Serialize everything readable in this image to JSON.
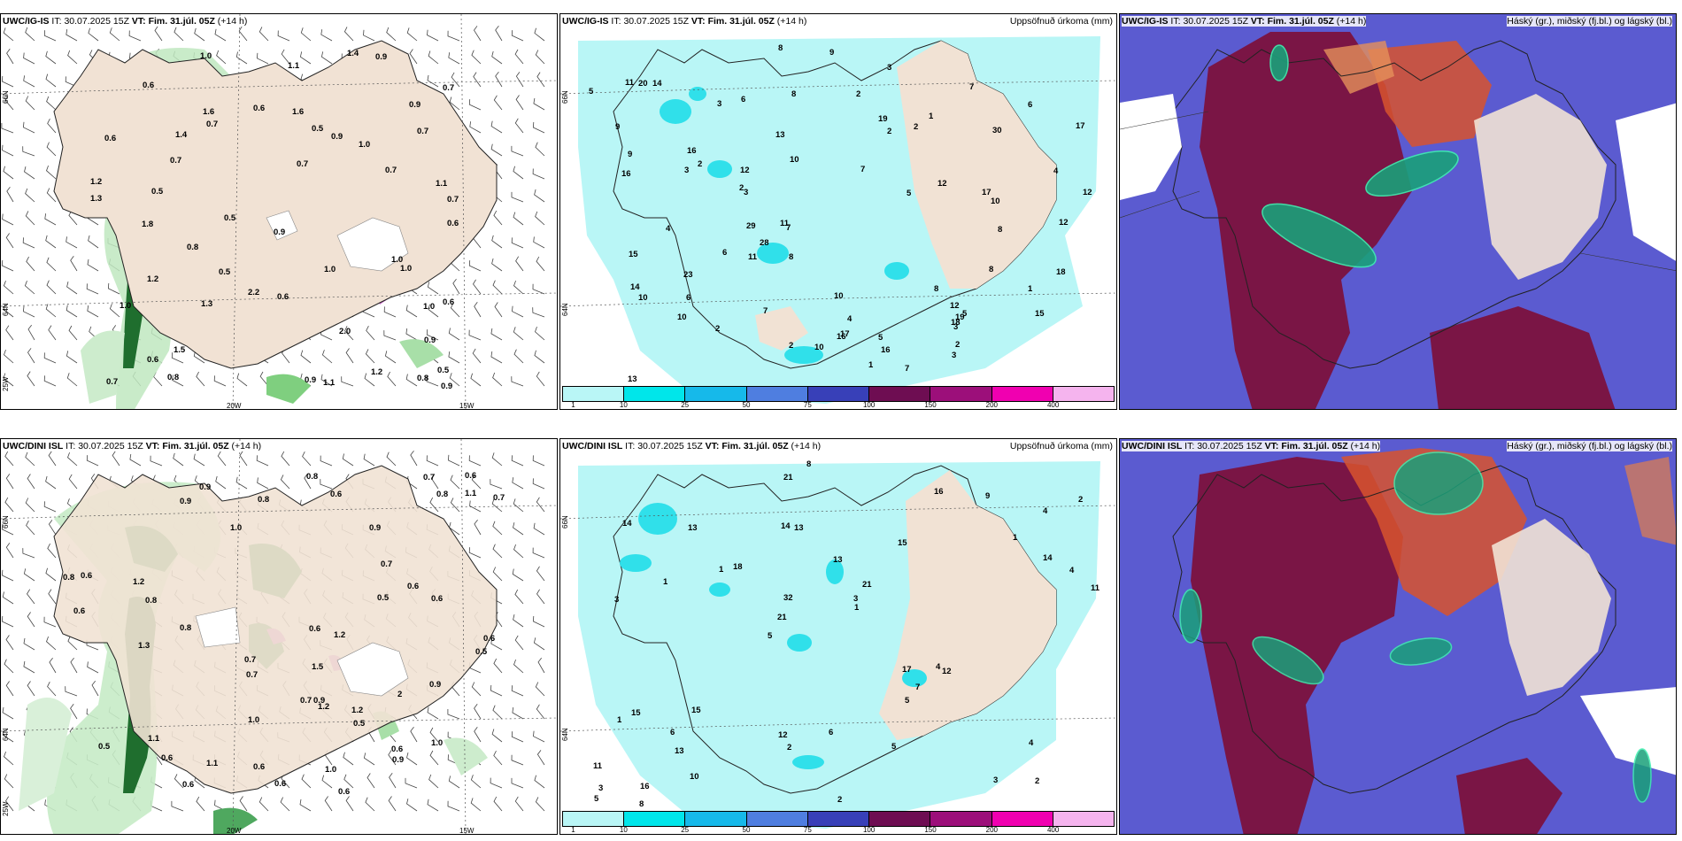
{
  "panels": {
    "ig_wind": {
      "model": "UWC/IG-IS",
      "it_label": "IT:",
      "it_value": "30.07.2025 15Z",
      "vt_label": "VT:",
      "vt_value": "Fim. 31.júl. 05Z",
      "lead": "(+14 h)",
      "lat_labels": [
        "66N",
        "64N",
        "25W"
      ],
      "lon_labels": [
        "20W",
        "15W"
      ],
      "values": [
        "0.7",
        "1.1",
        "0.9",
        "0.7",
        "0.5",
        "0.6",
        "0.5",
        "1.4",
        "1.0",
        "0.9",
        "0.7",
        "1.0",
        "0.7",
        "1.3",
        "1.0",
        "0.9",
        "0.8",
        "1.2",
        "1.0",
        "0.6",
        "0.5",
        "1.6",
        "0.6",
        "1.2",
        "0.7",
        "0.9",
        "0.7",
        "2.0",
        "0.9",
        "0.7",
        "0.8",
        "0.9",
        "1.8",
        "1.1",
        "0.5",
        "1.3",
        "0.6",
        "1.0",
        "0.7",
        "1.0",
        "1.1",
        "0.6",
        "2.2",
        "0.6",
        "0.9",
        "0.6",
        "0.5",
        "1.0",
        "1.6",
        "1.5",
        "0.8",
        "1.4",
        "1.2"
      ]
    },
    "ig_precip": {
      "model": "UWC/IG-IS",
      "it_label": "IT:",
      "it_value": "30.07.2025 15Z",
      "vt_label": "VT:",
      "vt_value": "Fim. 31.júl. 05Z",
      "lead": "(+14 h)",
      "title_right": "Uppsöfnuð úrkoma (mm)",
      "lat_labels": [
        "66N",
        "64N"
      ],
      "values": [
        "2",
        "4",
        "7",
        "5",
        "12",
        "10",
        "17",
        "15",
        "17",
        "16",
        "23",
        "15",
        "10",
        "7",
        "7",
        "16",
        "12",
        "19",
        "18",
        "10",
        "14",
        "8",
        "3",
        "3",
        "5",
        "2",
        "3",
        "1",
        "6",
        "12",
        "11",
        "8",
        "8",
        "10",
        "18",
        "13",
        "20",
        "5",
        "7",
        "6",
        "13",
        "10",
        "29",
        "14",
        "16",
        "19",
        "9",
        "8",
        "8",
        "8",
        "16",
        "9",
        "11",
        "12",
        "17",
        "7",
        "11",
        "10",
        "2",
        "3",
        "2",
        "2",
        "2",
        "3",
        "2",
        "4",
        "28",
        "30",
        "1",
        "2",
        "3",
        "1",
        "9",
        "5",
        "4",
        "6",
        "6",
        "12"
      ]
    },
    "ig_cloud": {
      "model": "UWC/IG-IS",
      "it_label": "IT:",
      "it_value": "30.07.2025 15Z",
      "vt_label": "VT:",
      "vt_value": "Fim. 31.júl. 05Z",
      "lead": "(+14 h)",
      "title_right": "Háský (gr.), miðský (fj.bl.) og lágský (bl.)"
    },
    "dini_wind": {
      "model": "UWC/DINI ISL",
      "it_label": "IT:",
      "it_value": "30.07.2025 15Z",
      "vt_label": "VT:",
      "vt_value": "Fim. 31.júl. 05Z",
      "lead": "(+14 h)",
      "lat_labels": [
        "66N",
        "64N",
        "25W"
      ],
      "lon_labels": [
        "20W",
        "15W"
      ],
      "values": [
        "0.6",
        "0.9",
        "1.1",
        "1.2",
        "0.6",
        "1.0",
        "0.5",
        "0.8",
        "0.7",
        "0.6",
        "0.5",
        "0.8",
        "0.7",
        "0.9",
        "0.5",
        "0.7",
        "0.6",
        "0.8",
        "2",
        "0.6",
        "0.6",
        "1.2",
        "0.6",
        "0.9",
        "1.2",
        "0.7",
        "1.3",
        "0.8",
        "0.6",
        "1.0",
        "0.5",
        "0.6",
        "0.9",
        "1.1",
        "0.9",
        "0.6",
        "0.8",
        "0.6",
        "0.6",
        "1.2",
        "0.8",
        "0.6",
        "0.7",
        "1.0",
        "0.6",
        "0.9",
        "0.7",
        "1.0",
        "1.5",
        "1.1"
      ]
    },
    "dini_precip": {
      "model": "UWC/DINI ISL",
      "it_label": "IT:",
      "it_value": "30.07.2025 15Z",
      "vt_label": "VT:",
      "vt_value": "Fim. 31.júl. 05Z",
      "lead": "(+14 h)",
      "title_right": "Uppsöfnuð úrkoma (mm)",
      "lat_labels": [
        "66N",
        "64N"
      ],
      "values": [
        "2",
        "3",
        "4",
        "5",
        "15",
        "16",
        "14",
        "13",
        "15",
        "18",
        "11",
        "13",
        "13",
        "21",
        "12",
        "14",
        "21",
        "11",
        "17",
        "14",
        "21",
        "12",
        "32",
        "13",
        "16",
        "15",
        "3",
        "4",
        "4",
        "2",
        "1",
        "1",
        "5",
        "10",
        "4",
        "3",
        "3",
        "2",
        "1",
        "1",
        "1",
        "2",
        "7",
        "5",
        "6",
        "8",
        "5",
        "6",
        "9",
        "8"
      ]
    },
    "dini_cloud": {
      "model": "UWC/DINI ISL",
      "it_label": "IT:",
      "it_value": "30.07.2025 15Z",
      "vt_label": "VT:",
      "vt_value": "Fim. 31.júl. 05Z",
      "lead": "(+14 h)",
      "title_right": "Háský (gr.), miðský (fj.bl.) og lágský (bl.)"
    }
  },
  "colorbar": {
    "ticks": [
      "1",
      "10",
      "25",
      "50",
      "75",
      "100",
      "150",
      "200",
      "400"
    ],
    "colors": [
      "#b9f6f6",
      "#00e6ea",
      "#16b9ea",
      "#4f7ee0",
      "#3840b8",
      "#6e0d52",
      "#9c0f7a",
      "#f000b0",
      "#f5b4ee"
    ]
  },
  "colors": {
    "land": "#f1e2d4",
    "ocean": "#ffffff",
    "precip_light": "#b9f6f6",
    "wind_green": "#1e7a2e",
    "cloud_high": "#7a1545",
    "cloud_mid": "#d8542e",
    "cloud_low": "#5555cc"
  }
}
